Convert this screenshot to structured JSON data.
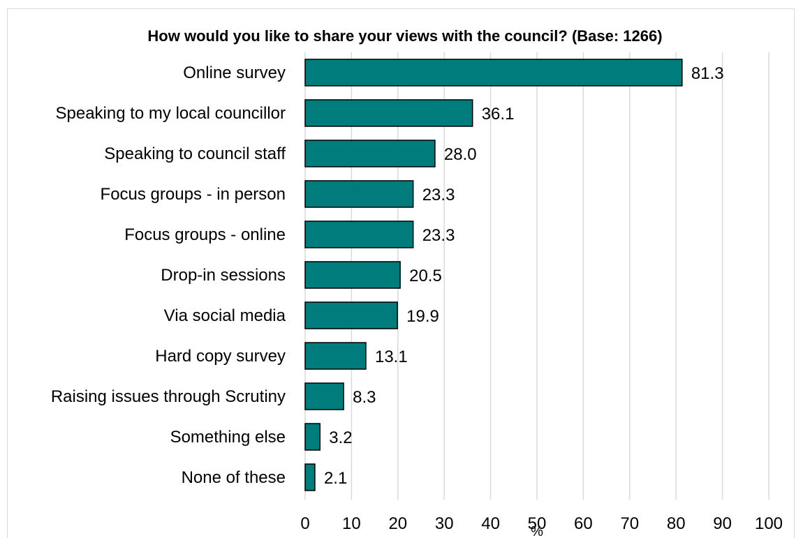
{
  "chart_data": {
    "type": "bar",
    "orientation": "horizontal",
    "title": "How would you like to share your views with the council? (Base: 1266)",
    "xlabel": "%",
    "ylabel": "",
    "categories": [
      "Online survey",
      "Speaking to my local councillor",
      "Speaking to council staff",
      "Focus groups - in person",
      "Focus groups - online",
      "Drop-in sessions",
      "Via social media",
      "Hard copy survey",
      "Raising issues through Scrutiny",
      "Something else",
      "None of these"
    ],
    "values": [
      81.3,
      36.1,
      28.0,
      23.3,
      23.3,
      20.5,
      19.9,
      13.1,
      8.3,
      3.2,
      2.1
    ],
    "value_labels": [
      "81.3",
      "36.1",
      "28.0",
      "23.3",
      "23.3",
      "20.5",
      "19.9",
      "13.1",
      "8.3",
      "3.2",
      "2.1"
    ],
    "xlim": [
      0,
      100
    ],
    "xticks": [
      "0",
      "10",
      "20",
      "30",
      "40",
      "50",
      "60",
      "70",
      "80",
      "90",
      "100"
    ],
    "grid": "vertical",
    "legend": "none",
    "bar_color": "#007C7C",
    "bar_edge_color": "#000000"
  }
}
